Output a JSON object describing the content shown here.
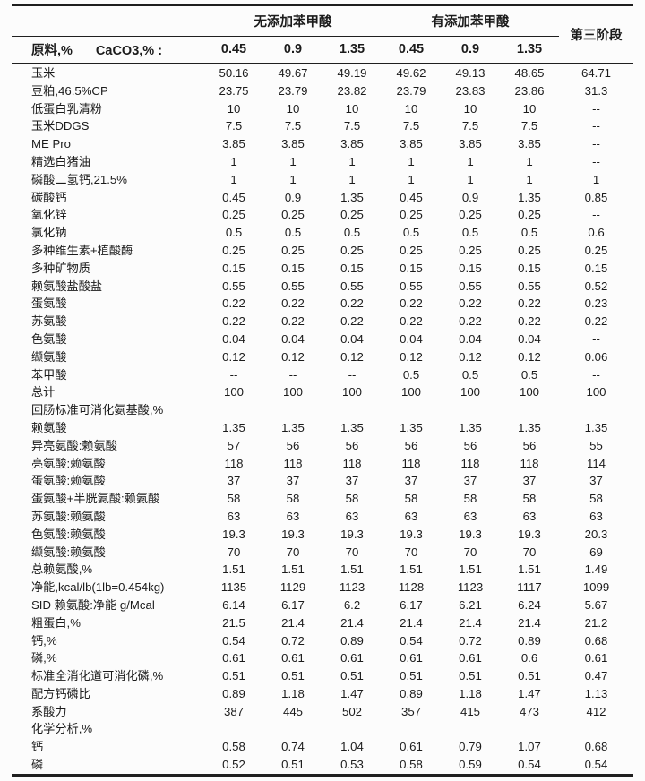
{
  "page": {
    "background": "#fcfcfc",
    "text_color": "#1b1b1b",
    "border_color": "#1f1f1f"
  },
  "table": {
    "group_headers": [
      {
        "label": "无添加苯甲酸",
        "span": 3
      },
      {
        "label": "有添加苯甲酸",
        "span": 3
      }
    ],
    "third_stage_label": "第三阶段",
    "row_header": {
      "material_label": "原料,%",
      "caco3_label": "CaCO3,% :",
      "levels": [
        "0.45",
        "0.9",
        "1.35",
        "0.45",
        "0.9",
        "1.35"
      ]
    },
    "rows": [
      {
        "label": "玉米",
        "values": [
          "50.16",
          "49.67",
          "49.19",
          "49.62",
          "49.13",
          "48.65",
          "64.71"
        ]
      },
      {
        "label": "豆粕,46.5%CP",
        "values": [
          "23.75",
          "23.79",
          "23.82",
          "23.79",
          "23.83",
          "23.86",
          "31.3"
        ]
      },
      {
        "label": "低蛋白乳清粉",
        "values": [
          "10",
          "10",
          "10",
          "10",
          "10",
          "10",
          "--"
        ]
      },
      {
        "label": "玉米DDGS",
        "values": [
          "7.5",
          "7.5",
          "7.5",
          "7.5",
          "7.5",
          "7.5",
          "--"
        ]
      },
      {
        "label": "ME Pro",
        "values": [
          "3.85",
          "3.85",
          "3.85",
          "3.85",
          "3.85",
          "3.85",
          "--"
        ]
      },
      {
        "label": "精选白猪油",
        "values": [
          "1",
          "1",
          "1",
          "1",
          "1",
          "1",
          "--"
        ]
      },
      {
        "label": "磷酸二氢钙,21.5%",
        "values": [
          "1",
          "1",
          "1",
          "1",
          "1",
          "1",
          "1"
        ]
      },
      {
        "label": "碳酸钙",
        "values": [
          "0.45",
          "0.9",
          "1.35",
          "0.45",
          "0.9",
          "1.35",
          "0.85"
        ]
      },
      {
        "label": "氧化锌",
        "values": [
          "0.25",
          "0.25",
          "0.25",
          "0.25",
          "0.25",
          "0.25",
          "--"
        ]
      },
      {
        "label": "氯化钠",
        "values": [
          "0.5",
          "0.5",
          "0.5",
          "0.5",
          "0.5",
          "0.5",
          "0.6"
        ]
      },
      {
        "label": "多种维生素+植酸酶",
        "values": [
          "0.25",
          "0.25",
          "0.25",
          "0.25",
          "0.25",
          "0.25",
          "0.25"
        ]
      },
      {
        "label": "多种矿物质",
        "values": [
          "0.15",
          "0.15",
          "0.15",
          "0.15",
          "0.15",
          "0.15",
          "0.15"
        ]
      },
      {
        "label": "赖氨酸盐酸盐",
        "values": [
          "0.55",
          "0.55",
          "0.55",
          "0.55",
          "0.55",
          "0.55",
          "0.52"
        ]
      },
      {
        "label": "蛋氨酸",
        "values": [
          "0.22",
          "0.22",
          "0.22",
          "0.22",
          "0.22",
          "0.22",
          "0.23"
        ]
      },
      {
        "label": "苏氨酸",
        "values": [
          "0.22",
          "0.22",
          "0.22",
          "0.22",
          "0.22",
          "0.22",
          "0.22"
        ]
      },
      {
        "label": "色氨酸",
        "values": [
          "0.04",
          "0.04",
          "0.04",
          "0.04",
          "0.04",
          "0.04",
          "--"
        ]
      },
      {
        "label": "缬氨酸",
        "values": [
          "0.12",
          "0.12",
          "0.12",
          "0.12",
          "0.12",
          "0.12",
          "0.06"
        ]
      },
      {
        "label": "苯甲酸",
        "values": [
          "--",
          "--",
          "--",
          "0.5",
          "0.5",
          "0.5",
          "--"
        ]
      },
      {
        "label": "总计",
        "values": [
          "100",
          "100",
          "100",
          "100",
          "100",
          "100",
          "100"
        ]
      },
      {
        "label": "回肠标准可消化氨基酸,%",
        "section": true,
        "values": [
          "",
          "",
          "",
          "",
          "",
          "",
          ""
        ]
      },
      {
        "label": "赖氨酸",
        "values": [
          "1.35",
          "1.35",
          "1.35",
          "1.35",
          "1.35",
          "1.35",
          "1.35"
        ]
      },
      {
        "label": "异亮氨酸:赖氨酸",
        "values": [
          "57",
          "56",
          "56",
          "56",
          "56",
          "56",
          "55"
        ]
      },
      {
        "label": "亮氨酸:赖氨酸",
        "values": [
          "118",
          "118",
          "118",
          "118",
          "118",
          "118",
          "114"
        ]
      },
      {
        "label": "蛋氨酸:赖氨酸",
        "values": [
          "37",
          "37",
          "37",
          "37",
          "37",
          "37",
          "37"
        ]
      },
      {
        "label": "蛋氨酸+半胱氨酸:赖氨酸",
        "values": [
          "58",
          "58",
          "58",
          "58",
          "58",
          "58",
          "58"
        ]
      },
      {
        "label": "苏氨酸:赖氨酸",
        "values": [
          "63",
          "63",
          "63",
          "63",
          "63",
          "63",
          "63"
        ]
      },
      {
        "label": "色氨酸:赖氨酸",
        "values": [
          "19.3",
          "19.3",
          "19.3",
          "19.3",
          "19.3",
          "19.3",
          "20.3"
        ]
      },
      {
        "label": "缬氨酸:赖氨酸",
        "values": [
          "70",
          "70",
          "70",
          "70",
          "70",
          "70",
          "69"
        ]
      },
      {
        "label": "总赖氨酸,%",
        "values": [
          "1.51",
          "1.51",
          "1.51",
          "1.51",
          "1.51",
          "1.51",
          "1.49"
        ]
      },
      {
        "label": "净能,kcal/lb(1lb=0.454kg)",
        "values": [
          "1135",
          "1129",
          "1123",
          "1128",
          "1123",
          "1117",
          "1099"
        ]
      },
      {
        "label": "SID 赖氨酸:净能 g/Mcal",
        "values": [
          "6.14",
          "6.17",
          "6.2",
          "6.17",
          "6.21",
          "6.24",
          "5.67"
        ]
      },
      {
        "label": "粗蛋白,%",
        "values": [
          "21.5",
          "21.4",
          "21.4",
          "21.4",
          "21.4",
          "21.4",
          "21.2"
        ]
      },
      {
        "label": "钙,%",
        "values": [
          "0.54",
          "0.72",
          "0.89",
          "0.54",
          "0.72",
          "0.89",
          "0.68"
        ]
      },
      {
        "label": "磷,%",
        "values": [
          "0.61",
          "0.61",
          "0.61",
          "0.61",
          "0.61",
          "0.6",
          "0.61"
        ]
      },
      {
        "label": "标准全消化道可消化磷,%",
        "values": [
          "0.51",
          "0.51",
          "0.51",
          "0.51",
          "0.51",
          "0.51",
          "0.47"
        ]
      },
      {
        "label": "配方钙磷比",
        "values": [
          "0.89",
          "1.18",
          "1.47",
          "0.89",
          "1.18",
          "1.47",
          "1.13"
        ]
      },
      {
        "label": "系酸力",
        "values": [
          "387",
          "445",
          "502",
          "357",
          "415",
          "473",
          "412"
        ]
      },
      {
        "label": "化学分析,%",
        "section": true,
        "values": [
          "",
          "",
          "",
          "",
          "",
          "",
          ""
        ]
      },
      {
        "label": "钙",
        "values": [
          "0.58",
          "0.74",
          "1.04",
          "0.61",
          "0.79",
          "1.07",
          "0.68"
        ]
      },
      {
        "label": "磷",
        "values": [
          "0.52",
          "0.51",
          "0.53",
          "0.58",
          "0.59",
          "0.54",
          "0.54"
        ]
      }
    ]
  }
}
